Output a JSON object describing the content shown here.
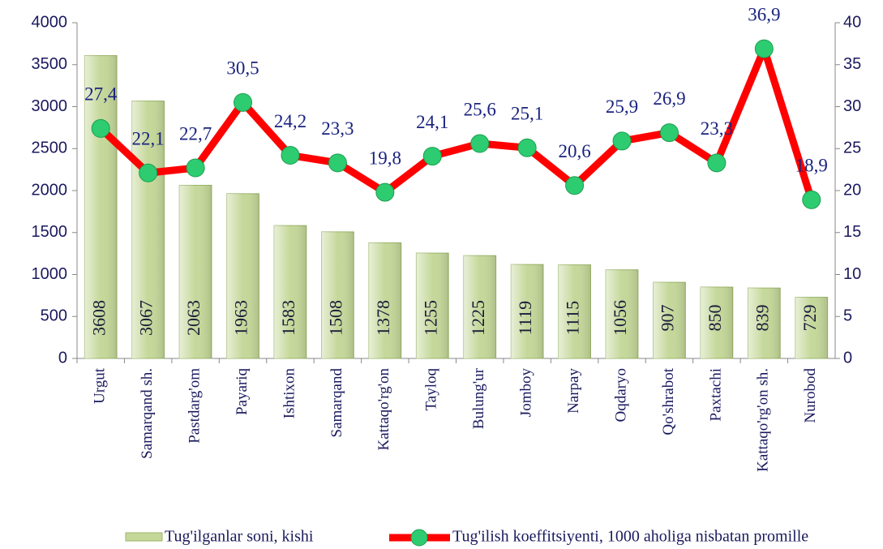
{
  "chart_data": {
    "type": "bar",
    "categories": [
      "Urgut",
      "Samarqand sh.",
      "Pastdarg'om",
      "Payariq",
      "Ishtixon",
      "Samarqand",
      "Kattaqo'rg'on",
      "Tayloq",
      "Bulung'ur",
      "Jomboy",
      "Narpay",
      "Oqdaryo",
      "Qo'shrabot",
      "Paxtachi",
      "Kattaqo'rg'on sh.",
      "Nurobod"
    ],
    "series": [
      {
        "name": "Tug'ilganlar soni, kishi",
        "type": "bar",
        "color": "#c5d89a",
        "axis": "y",
        "values": [
          3608,
          3067,
          2063,
          1963,
          1583,
          1508,
          1378,
          1255,
          1225,
          1119,
          1115,
          1056,
          907,
          850,
          839,
          729
        ]
      },
      {
        "name": "Tug'ilish koeffitsiyenti, 1000 aholiga nisbatan promille",
        "type": "line",
        "color": "#ff0000",
        "marker_color": "#2ecc71",
        "axis": "y2",
        "values": [
          27.4,
          22.1,
          22.7,
          30.5,
          24.2,
          23.3,
          19.8,
          24.1,
          25.6,
          25.1,
          20.6,
          25.9,
          26.9,
          23.3,
          36.9,
          18.9
        ],
        "value_labels": [
          "27,4",
          "22,1",
          "22,7",
          "30,5",
          "24,2",
          "23,3",
          "19,8",
          "24,1",
          "25,6",
          "25,1",
          "20,6",
          "25,9",
          "26,9",
          "23,3",
          "36,9",
          "18,9"
        ]
      }
    ],
    "ylim": [
      0,
      4000
    ],
    "yticks": [
      0,
      500,
      1000,
      1500,
      2000,
      2500,
      3000,
      3500,
      4000
    ],
    "y2lim": [
      0,
      40
    ],
    "y2ticks": [
      0,
      5,
      10,
      15,
      20,
      25,
      30,
      35,
      40
    ],
    "legend": "bottom"
  }
}
